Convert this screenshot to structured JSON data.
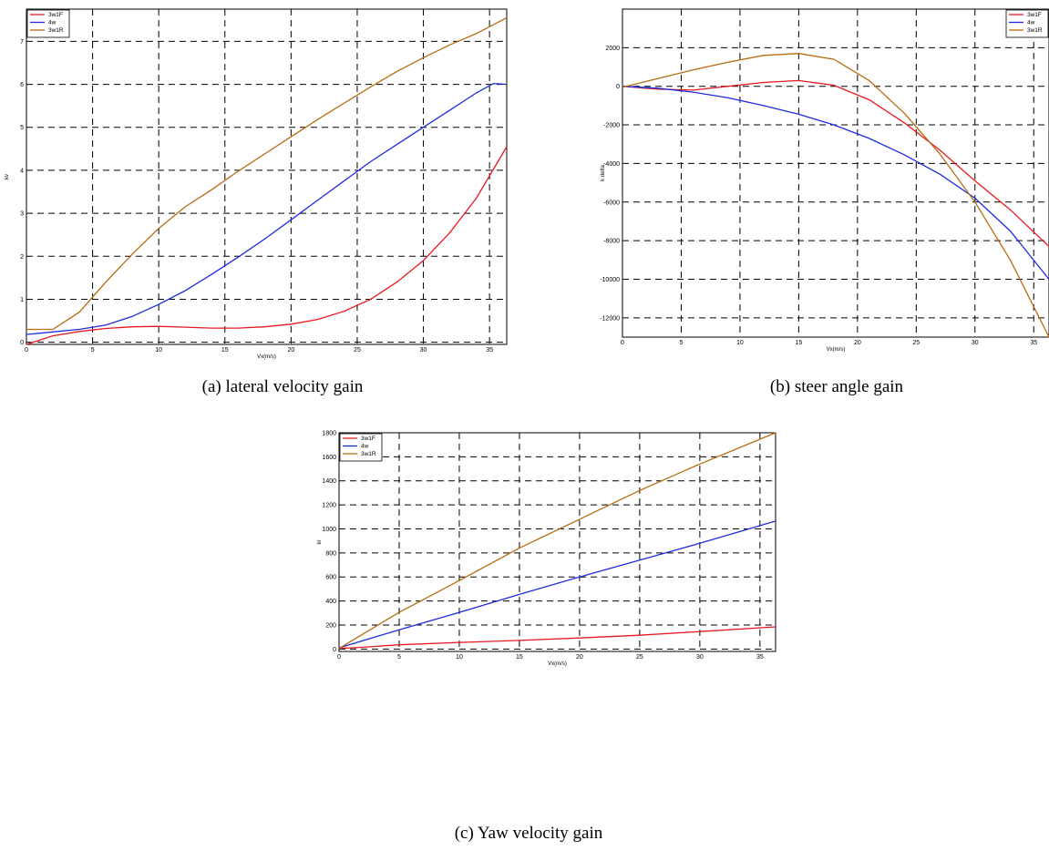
{
  "chart_data": [
    {
      "type": "line",
      "caption": "(a)  lateral velocity gain",
      "xlabel": "Vx(m/s)",
      "ylabel": "kv",
      "xlim": [
        0,
        36.3
      ],
      "ylim": [
        -0.05,
        7.75
      ],
      "xticks": [
        0,
        5,
        10,
        15,
        20,
        25,
        30,
        35
      ],
      "yticks": [
        0,
        1,
        2,
        3,
        4,
        5,
        6,
        7
      ],
      "grid": true,
      "legend_position": "top-left",
      "series": [
        {
          "name": "3w1F",
          "color": "#e8191f",
          "x": [
            0,
            2,
            4,
            6,
            8,
            10,
            12,
            14,
            16,
            18,
            20,
            22,
            24,
            26,
            28,
            30,
            32,
            34,
            36.3
          ],
          "y": [
            -0.05,
            0.15,
            0.25,
            0.32,
            0.36,
            0.37,
            0.35,
            0.33,
            0.33,
            0.36,
            0.42,
            0.53,
            0.72,
            1.0,
            1.4,
            1.9,
            2.55,
            3.35,
            4.55
          ]
        },
        {
          "name": "4w",
          "color": "#1f2be0",
          "x": [
            0,
            2,
            4,
            6,
            8,
            10,
            12,
            14,
            16,
            18,
            20,
            22,
            24,
            26,
            28,
            30,
            32,
            34,
            35.3,
            36.3
          ],
          "y": [
            0.18,
            0.24,
            0.3,
            0.4,
            0.6,
            0.88,
            1.2,
            1.58,
            1.98,
            2.4,
            2.85,
            3.3,
            3.75,
            4.2,
            4.6,
            5.0,
            5.4,
            5.8,
            6.02,
            6.0
          ]
        },
        {
          "name": "3w1R",
          "color": "#b86b11",
          "x": [
            0,
            2,
            4,
            6,
            8,
            10,
            12,
            14,
            16,
            18,
            20,
            22,
            24,
            26,
            28,
            30,
            32,
            34,
            36.3
          ],
          "y": [
            0.3,
            0.3,
            0.7,
            1.4,
            2.05,
            2.65,
            3.15,
            3.55,
            3.98,
            4.38,
            4.78,
            5.18,
            5.56,
            5.94,
            6.3,
            6.62,
            6.92,
            7.18,
            7.55
          ]
        }
      ]
    },
    {
      "type": "line",
      "caption": "(b) steer angle gain",
      "xlabel": "Vx(m/s)",
      "ylabel": "k delta",
      "xlim": [
        0,
        36.3
      ],
      "ylim": [
        -13000,
        4000
      ],
      "xticks": [
        0,
        5,
        10,
        15,
        20,
        25,
        30,
        35
      ],
      "yticks": [
        2000,
        0,
        -2000,
        -4000,
        -6000,
        -8000,
        -10000,
        -12000
      ],
      "grid": true,
      "legend_position": "top-right",
      "series": [
        {
          "name": "3w1F",
          "color": "#e8191f",
          "x": [
            0,
            3,
            6,
            9,
            12,
            15,
            18,
            21,
            24,
            27,
            30,
            33,
            36.3
          ],
          "y": [
            0,
            -150,
            -200,
            0,
            200,
            300,
            50,
            -700,
            -1900,
            -3300,
            -4900,
            -6400,
            -8300
          ]
        },
        {
          "name": "4w",
          "color": "#1f2be0",
          "x": [
            0,
            3,
            6,
            9,
            12,
            15,
            18,
            21,
            24,
            27,
            30,
            33,
            36.3
          ],
          "y": [
            0,
            -100,
            -300,
            -600,
            -1000,
            -1450,
            -2000,
            -2700,
            -3550,
            -4550,
            -5800,
            -7500,
            -10000
          ]
        },
        {
          "name": "3w1R",
          "color": "#b86b11",
          "x": [
            0,
            3,
            6,
            9,
            12,
            15,
            18,
            21,
            24,
            27,
            30,
            33,
            36.3
          ],
          "y": [
            -50,
            400,
            850,
            1250,
            1600,
            1700,
            1400,
            300,
            -1400,
            -3500,
            -6000,
            -9000,
            -13000
          ]
        }
      ]
    },
    {
      "type": "line",
      "caption": "(c) Yaw velocity gain",
      "xlabel": "Vx(m/s)",
      "ylabel": "kr",
      "xlim": [
        0,
        36.3
      ],
      "ylim": [
        -20,
        1800
      ],
      "xticks": [
        0,
        5,
        10,
        15,
        20,
        25,
        30,
        35
      ],
      "yticks": [
        0,
        200,
        400,
        600,
        800,
        1000,
        1200,
        1400,
        1600,
        1800
      ],
      "grid": true,
      "legend_position": "top-left",
      "series": [
        {
          "name": "3w1F",
          "color": "#e8191f",
          "x": [
            0,
            2,
            5,
            10,
            15,
            20,
            25,
            30,
            36.3
          ],
          "y": [
            5,
            15,
            35,
            55,
            72,
            92,
            115,
            145,
            185
          ]
        },
        {
          "name": "4w",
          "color": "#1f2be0",
          "x": [
            0,
            5,
            10,
            15,
            20,
            25,
            30,
            36.3
          ],
          "y": [
            10,
            160,
            305,
            455,
            600,
            740,
            880,
            1065
          ]
        },
        {
          "name": "3w1R",
          "color": "#b86b11",
          "x": [
            0,
            5,
            10,
            15,
            20,
            25,
            30,
            36.3
          ],
          "y": [
            5,
            305,
            570,
            840,
            1080,
            1320,
            1540,
            1800
          ]
        }
      ]
    }
  ]
}
